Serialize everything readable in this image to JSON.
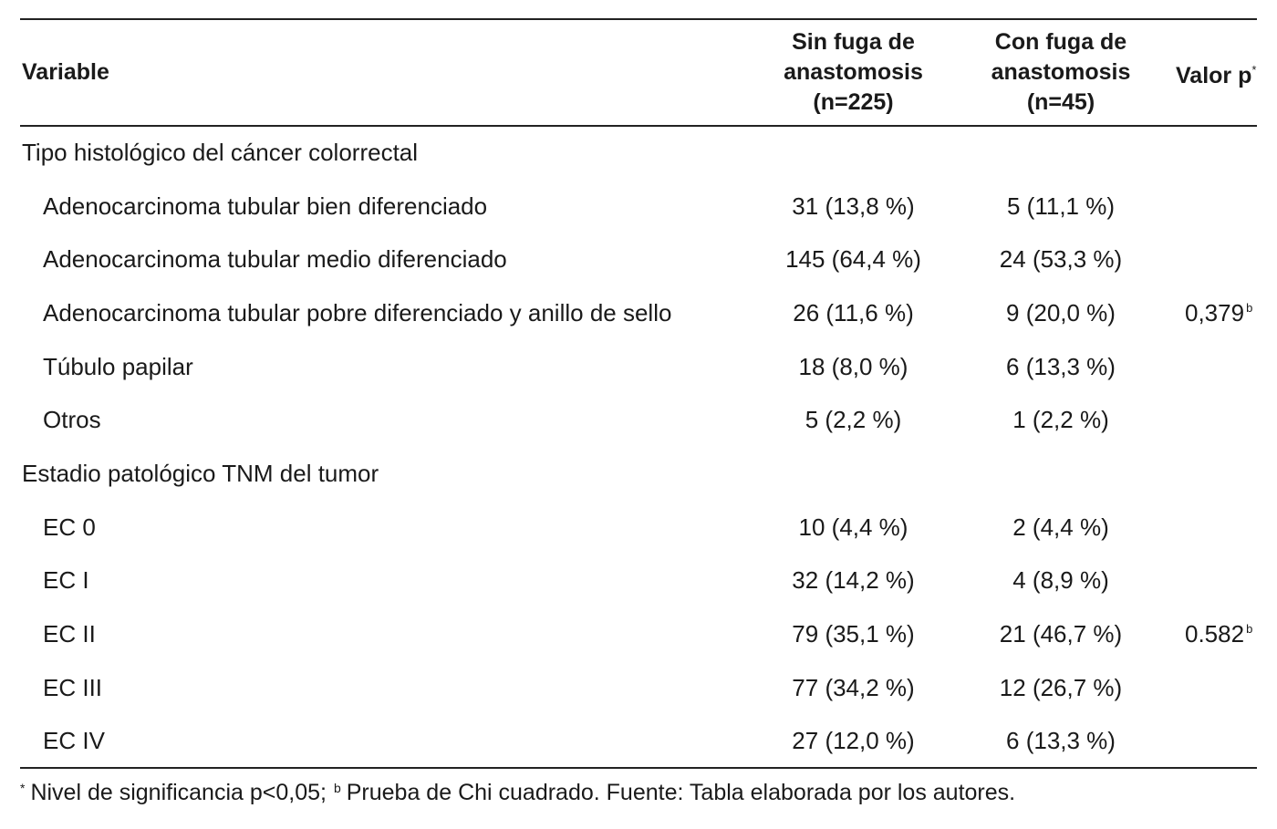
{
  "header": {
    "variable": "Variable",
    "sin_fuga": [
      "Sin fuga de",
      "anastomosis",
      "(n=225)"
    ],
    "con_fuga": [
      "Con fuga de",
      "anastomosis",
      "(n=45)"
    ],
    "valor_p": "Valor p",
    "valor_p_mark": "*"
  },
  "sections": [
    {
      "title": "Tipo histológico del cáncer colorrectal",
      "rows": [
        {
          "label": "Adenocarcinoma tubular bien diferenciado",
          "sin": "31 (13,8 %)",
          "con": "5 (11,1 %)",
          "p": "",
          "p_mark": ""
        },
        {
          "label": "Adenocarcinoma tubular medio diferenciado",
          "sin": "145 (64,4 %)",
          "con": "24 (53,3 %)",
          "p": "",
          "p_mark": ""
        },
        {
          "label": "Adenocarcinoma tubular pobre diferenciado y anillo de sello",
          "sin": "26 (11,6 %)",
          "con": "9 (20,0 %)",
          "p": "0,379",
          "p_mark": "b"
        },
        {
          "label": "Túbulo papilar",
          "sin": "18 (8,0 %)",
          "con": "6 (13,3 %)",
          "p": "",
          "p_mark": ""
        },
        {
          "label": "Otros",
          "sin": "5 (2,2 %)",
          "con": "1 (2,2 %)",
          "p": "",
          "p_mark": ""
        }
      ]
    },
    {
      "title": "Estadio patológico TNM del tumor",
      "rows": [
        {
          "label": "EC 0",
          "sin": "10 (4,4 %)",
          "con": "2 (4,4 %)",
          "p": "",
          "p_mark": ""
        },
        {
          "label": "EC I",
          "sin": "32 (14,2 %)",
          "con": "4 (8,9 %)",
          "p": "",
          "p_mark": ""
        },
        {
          "label": "EC II",
          "sin": "79 (35,1 %)",
          "con": "21 (46,7 %)",
          "p": "0.582",
          "p_mark": "b"
        },
        {
          "label": "EC III",
          "sin": "77 (34,2 %)",
          "con": "12 (26,7 %)",
          "p": "",
          "p_mark": ""
        },
        {
          "label": "EC IV",
          "sin": "27 (12,0 %)",
          "con": "6 (13,3 %)",
          "p": "",
          "p_mark": ""
        }
      ]
    }
  ],
  "footnote": {
    "mark_a": "*",
    "text_a": "Nivel de significancia p<0,05;",
    "mark_b": "b",
    "text_b": "Prueba de Chi cuadrado. Fuente: Tabla elaborada por los autores."
  }
}
